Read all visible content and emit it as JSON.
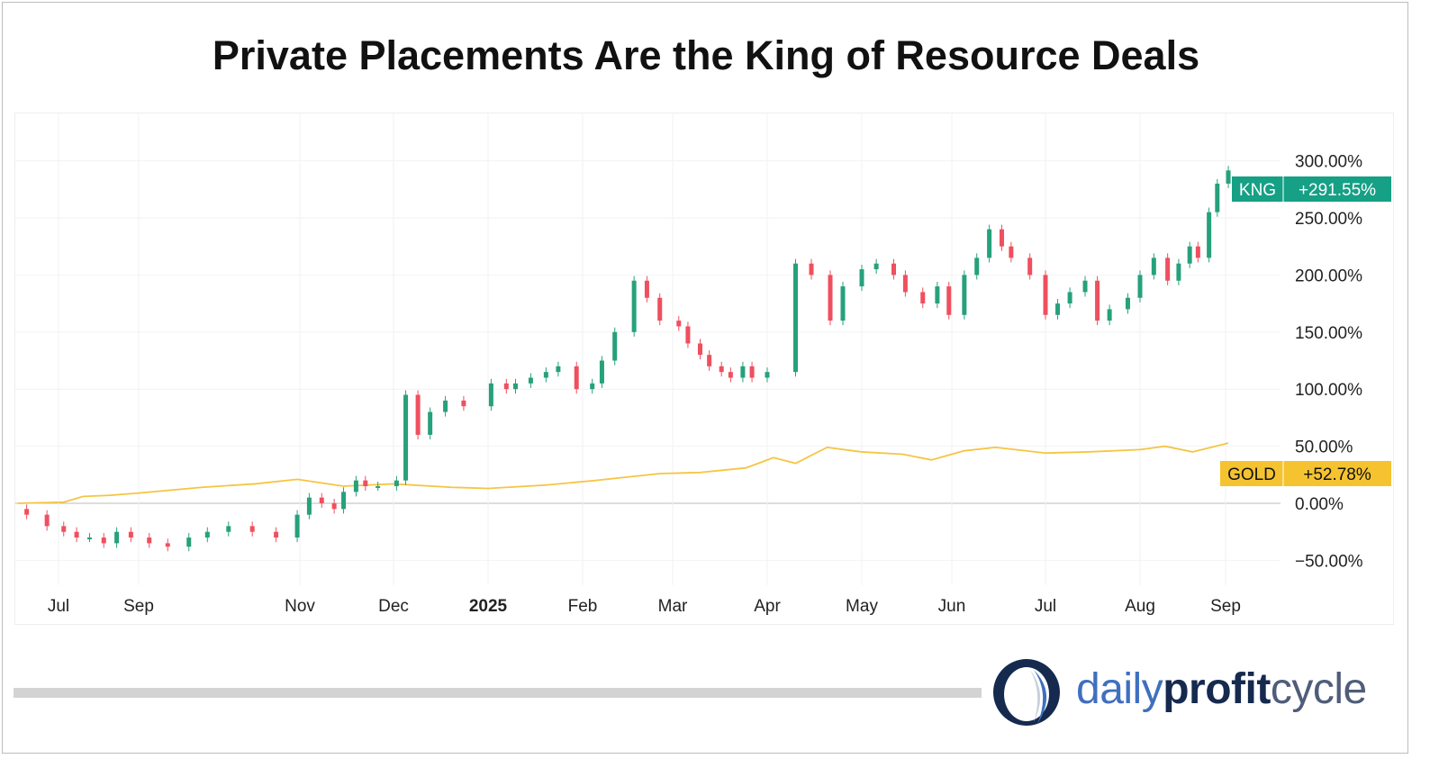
{
  "title": "Private Placements Are the King of Resource Deals",
  "logo": {
    "part1": "daily",
    "part2": "profit",
    "part3": "cycle"
  },
  "chart_data": {
    "type": "candlestick+line",
    "title": "Private Placements Are the King of Resource Deals",
    "y_axis": {
      "position": "right",
      "unit": "%",
      "range": [
        -70,
        330
      ],
      "ticks": [
        "300.00%",
        "250.00%",
        "200.00%",
        "150.00%",
        "100.00%",
        "50.00%",
        "0.00%",
        "−50.00%"
      ],
      "tick_values": [
        300,
        250,
        200,
        150,
        100,
        50,
        0,
        -50
      ]
    },
    "x_axis": {
      "ticks": [
        {
          "label": "Jul",
          "date": "2024-07-01"
        },
        {
          "label": "Sep",
          "date": "2024-09-01"
        },
        {
          "label": "Nov",
          "date": "2024-11-01"
        },
        {
          "label": "Dec",
          "date": "2024-12-01"
        },
        {
          "label": "2025",
          "date": "2025-01-01",
          "bold": true
        },
        {
          "label": "Feb",
          "date": "2025-02-01"
        },
        {
          "label": "Mar",
          "date": "2025-03-01"
        },
        {
          "label": "Apr",
          "date": "2025-04-01"
        },
        {
          "label": "May",
          "date": "2025-05-01"
        },
        {
          "label": "Jun",
          "date": "2025-06-01"
        },
        {
          "label": "Jul",
          "date": "2025-07-01"
        },
        {
          "label": "Aug",
          "date": "2025-08-01"
        },
        {
          "label": "Sep",
          "date": "2025-09-01"
        }
      ]
    },
    "grid": true,
    "colors": {
      "up": "#26a17b",
      "down": "#ef4f5f",
      "gold": "#f5c542",
      "kng_badge": "#16a085",
      "gold_badge": "#f5c330"
    },
    "series": [
      {
        "name": "KNG",
        "type": "candlestick",
        "last_label": "+291.55%",
        "candles": [
          [
            "2024-06-20",
            -5,
            -10
          ],
          [
            "2024-06-27",
            -10,
            -20
          ],
          [
            "2024-07-05",
            -20,
            -25
          ],
          [
            "2024-07-15",
            -25,
            -30
          ],
          [
            "2024-07-25",
            -30,
            -30
          ],
          [
            "2024-08-05",
            -30,
            -35
          ],
          [
            "2024-08-15",
            -35,
            -25
          ],
          [
            "2024-08-26",
            -25,
            -30
          ],
          [
            "2024-09-05",
            -30,
            -35
          ],
          [
            "2024-09-12",
            -35,
            -38
          ],
          [
            "2024-09-20",
            -38,
            -30
          ],
          [
            "2024-09-27",
            -30,
            -25
          ],
          [
            "2024-10-05",
            -25,
            -20
          ],
          [
            "2024-10-14",
            -20,
            -25
          ],
          [
            "2024-10-23",
            -25,
            -30
          ],
          [
            "2024-10-31",
            -30,
            -10
          ],
          [
            "2024-11-04",
            -10,
            5
          ],
          [
            "2024-11-08",
            5,
            0
          ],
          [
            "2024-11-12",
            0,
            -5
          ],
          [
            "2024-11-15",
            -5,
            10
          ],
          [
            "2024-11-19",
            10,
            20
          ],
          [
            "2024-11-22",
            20,
            15
          ],
          [
            "2024-11-26",
            15,
            15
          ],
          [
            "2024-12-02",
            15,
            20
          ],
          [
            "2024-12-05",
            20,
            95
          ],
          [
            "2024-12-09",
            95,
            60
          ],
          [
            "2024-12-13",
            60,
            80
          ],
          [
            "2024-12-18",
            80,
            90
          ],
          [
            "2024-12-24",
            90,
            85
          ],
          [
            "2025-01-02",
            85,
            105
          ],
          [
            "2025-01-07",
            105,
            100
          ],
          [
            "2025-01-10",
            100,
            105
          ],
          [
            "2025-01-15",
            105,
            110
          ],
          [
            "2025-01-20",
            110,
            115
          ],
          [
            "2025-01-24",
            115,
            120
          ],
          [
            "2025-01-30",
            120,
            100
          ],
          [
            "2025-02-04",
            100,
            105
          ],
          [
            "2025-02-07",
            105,
            125
          ],
          [
            "2025-02-11",
            125,
            150
          ],
          [
            "2025-02-17",
            150,
            195
          ],
          [
            "2025-02-21",
            195,
            180
          ],
          [
            "2025-02-25",
            180,
            160
          ],
          [
            "2025-03-03",
            160,
            155
          ],
          [
            "2025-03-06",
            155,
            140
          ],
          [
            "2025-03-10",
            140,
            130
          ],
          [
            "2025-03-13",
            130,
            120
          ],
          [
            "2025-03-17",
            120,
            115
          ],
          [
            "2025-03-20",
            115,
            110
          ],
          [
            "2025-03-24",
            110,
            120
          ],
          [
            "2025-03-27",
            120,
            110
          ],
          [
            "2025-04-01",
            110,
            115
          ],
          [
            "2025-04-10",
            115,
            210
          ],
          [
            "2025-04-15",
            210,
            200
          ],
          [
            "2025-04-21",
            200,
            160
          ],
          [
            "2025-04-25",
            160,
            190
          ],
          [
            "2025-05-01",
            190,
            205
          ],
          [
            "2025-05-06",
            205,
            210
          ],
          [
            "2025-05-12",
            210,
            200
          ],
          [
            "2025-05-16",
            200,
            185
          ],
          [
            "2025-05-22",
            185,
            175
          ],
          [
            "2025-05-27",
            175,
            190
          ],
          [
            "2025-05-31",
            190,
            165
          ],
          [
            "2025-06-05",
            165,
            200
          ],
          [
            "2025-06-09",
            200,
            215
          ],
          [
            "2025-06-13",
            215,
            240
          ],
          [
            "2025-06-17",
            240,
            225
          ],
          [
            "2025-06-20",
            225,
            215
          ],
          [
            "2025-06-26",
            215,
            200
          ],
          [
            "2025-07-01",
            200,
            165
          ],
          [
            "2025-07-05",
            165,
            175
          ],
          [
            "2025-07-09",
            175,
            185
          ],
          [
            "2025-07-14",
            185,
            195
          ],
          [
            "2025-07-18",
            195,
            160
          ],
          [
            "2025-07-22",
            160,
            170
          ],
          [
            "2025-07-28",
            170,
            180
          ],
          [
            "2025-08-01",
            180,
            200
          ],
          [
            "2025-08-06",
            200,
            215
          ],
          [
            "2025-08-11",
            215,
            195
          ],
          [
            "2025-08-15",
            195,
            210
          ],
          [
            "2025-08-19",
            210,
            225
          ],
          [
            "2025-08-22",
            225,
            215
          ],
          [
            "2025-08-26",
            215,
            255
          ],
          [
            "2025-08-29",
            255,
            280
          ],
          [
            "2025-09-02",
            280,
            291.55
          ]
        ]
      },
      {
        "name": "GOLD",
        "type": "line",
        "last_label": "+52.78%",
        "points": [
          [
            "2024-06-17",
            0
          ],
          [
            "2024-07-05",
            1
          ],
          [
            "2024-07-20",
            6
          ],
          [
            "2024-08-10",
            7
          ],
          [
            "2024-09-01",
            9
          ],
          [
            "2024-09-25",
            14
          ],
          [
            "2024-10-15",
            17
          ],
          [
            "2024-10-31",
            21
          ],
          [
            "2024-11-15",
            15
          ],
          [
            "2024-12-01",
            17
          ],
          [
            "2024-12-20",
            14
          ],
          [
            "2025-01-01",
            13
          ],
          [
            "2025-01-20",
            16
          ],
          [
            "2025-02-05",
            20
          ],
          [
            "2025-02-25",
            26
          ],
          [
            "2025-03-10",
            27
          ],
          [
            "2025-03-25",
            31
          ],
          [
            "2025-04-03",
            40
          ],
          [
            "2025-04-10",
            35
          ],
          [
            "2025-04-20",
            49
          ],
          [
            "2025-05-01",
            45
          ],
          [
            "2025-05-15",
            43
          ],
          [
            "2025-05-25",
            38
          ],
          [
            "2025-06-05",
            46
          ],
          [
            "2025-06-15",
            49
          ],
          [
            "2025-07-01",
            44
          ],
          [
            "2025-07-15",
            45
          ],
          [
            "2025-08-01",
            47
          ],
          [
            "2025-08-10",
            50
          ],
          [
            "2025-08-20",
            45
          ],
          [
            "2025-09-02",
            52.78
          ]
        ]
      }
    ]
  }
}
